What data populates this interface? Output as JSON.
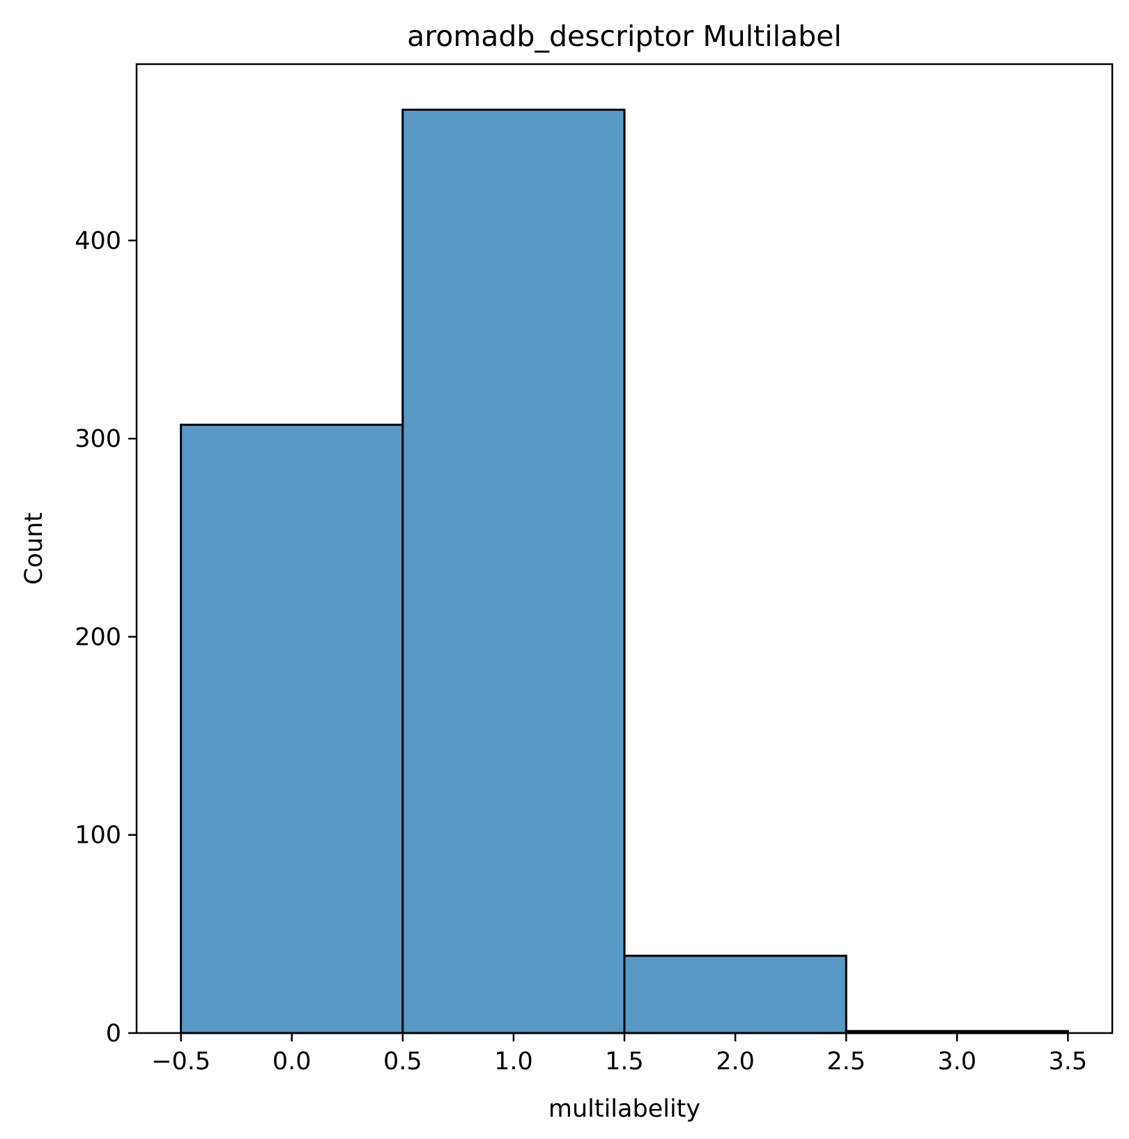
{
  "chart_data": {
    "type": "bar",
    "title": "aromadb_descriptor Multilabel",
    "xlabel": "multilabelity",
    "ylabel": "Count",
    "bins": [
      {
        "x0": -0.5,
        "x1": 0.5,
        "count": 307
      },
      {
        "x0": 0.5,
        "x1": 1.5,
        "count": 466
      },
      {
        "x0": 1.5,
        "x1": 2.5,
        "count": 39
      },
      {
        "x0": 2.5,
        "x1": 3.5,
        "count": 1
      }
    ],
    "xlim": [
      -0.7,
      3.7
    ],
    "ylim": [
      0,
      489
    ],
    "xticks": [
      -0.5,
      0.0,
      0.5,
      1.0,
      1.5,
      2.0,
      2.5,
      3.0,
      3.5
    ],
    "xtick_labels": [
      "−0.5",
      "0.0",
      "0.5",
      "1.0",
      "1.5",
      "2.0",
      "2.5",
      "3.0",
      "3.5"
    ],
    "yticks": [
      0,
      100,
      200,
      300,
      400
    ],
    "ytick_labels": [
      "0",
      "100",
      "200",
      "300",
      "400"
    ],
    "grid": false,
    "colors": {
      "bar_fill": "#5899c6",
      "bar_edge": "#000000"
    }
  }
}
